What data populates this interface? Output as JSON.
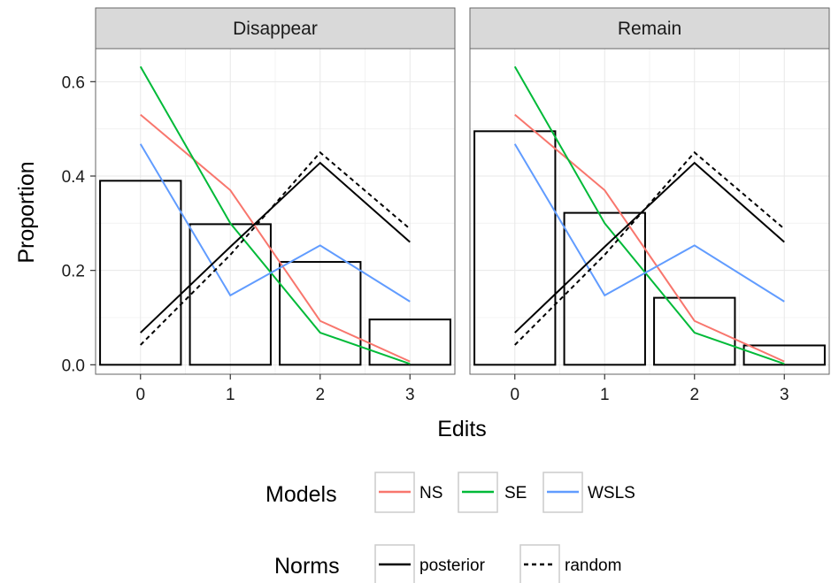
{
  "chart_data": {
    "type": "faceted-bar-line",
    "xlabel": "Edits",
    "ylabel": "Proportion",
    "x": [
      0,
      1,
      2,
      3
    ],
    "xlim": [
      -0.5,
      3.5
    ],
    "ylim": [
      -0.02,
      0.67
    ],
    "yticks": [
      0.0,
      0.2,
      0.4,
      0.6
    ],
    "ytick_labels": [
      "0.0",
      "0.2",
      "0.4",
      "0.6"
    ],
    "xtick_labels": [
      "0",
      "1",
      "2",
      "3"
    ],
    "grid": true,
    "colors": {
      "NS": "#F8766D",
      "SE": "#00BA38",
      "WSLS": "#619CFF",
      "norm": "#000000"
    },
    "facets": [
      {
        "label": "Disappear",
        "bars": [
          0.39,
          0.298,
          0.218,
          0.096
        ],
        "models": [
          {
            "name": "NS",
            "values": [
              0.53,
              0.37,
              0.093,
              0.007
            ]
          },
          {
            "name": "SE",
            "values": [
              0.632,
              0.3,
              0.068,
              0.002
            ]
          },
          {
            "name": "WSLS",
            "values": [
              0.468,
              0.147,
              0.253,
              0.134
            ]
          }
        ],
        "norms": [
          {
            "name": "posterior",
            "values": [
              0.068,
              0.25,
              0.428,
              0.26
            ]
          },
          {
            "name": "random",
            "values": [
              0.042,
              0.233,
              0.45,
              0.288
            ]
          }
        ]
      },
      {
        "label": "Remain",
        "bars": [
          0.495,
          0.322,
          0.142,
          0.041
        ],
        "models": [
          {
            "name": "NS",
            "values": [
              0.53,
              0.37,
              0.093,
              0.007
            ]
          },
          {
            "name": "SE",
            "values": [
              0.632,
              0.3,
              0.068,
              0.002
            ]
          },
          {
            "name": "WSLS",
            "values": [
              0.468,
              0.147,
              0.253,
              0.134
            ]
          }
        ],
        "norms": [
          {
            "name": "posterior",
            "values": [
              0.068,
              0.25,
              0.428,
              0.26
            ]
          },
          {
            "name": "random",
            "values": [
              0.042,
              0.233,
              0.45,
              0.288
            ]
          }
        ]
      }
    ],
    "legend": {
      "placement": "bottom",
      "models_title": "Models",
      "models_labels": [
        "NS",
        "SE",
        "WSLS"
      ],
      "norms_title": "Norms",
      "norms_labels": [
        "posterior",
        "random"
      ]
    }
  }
}
